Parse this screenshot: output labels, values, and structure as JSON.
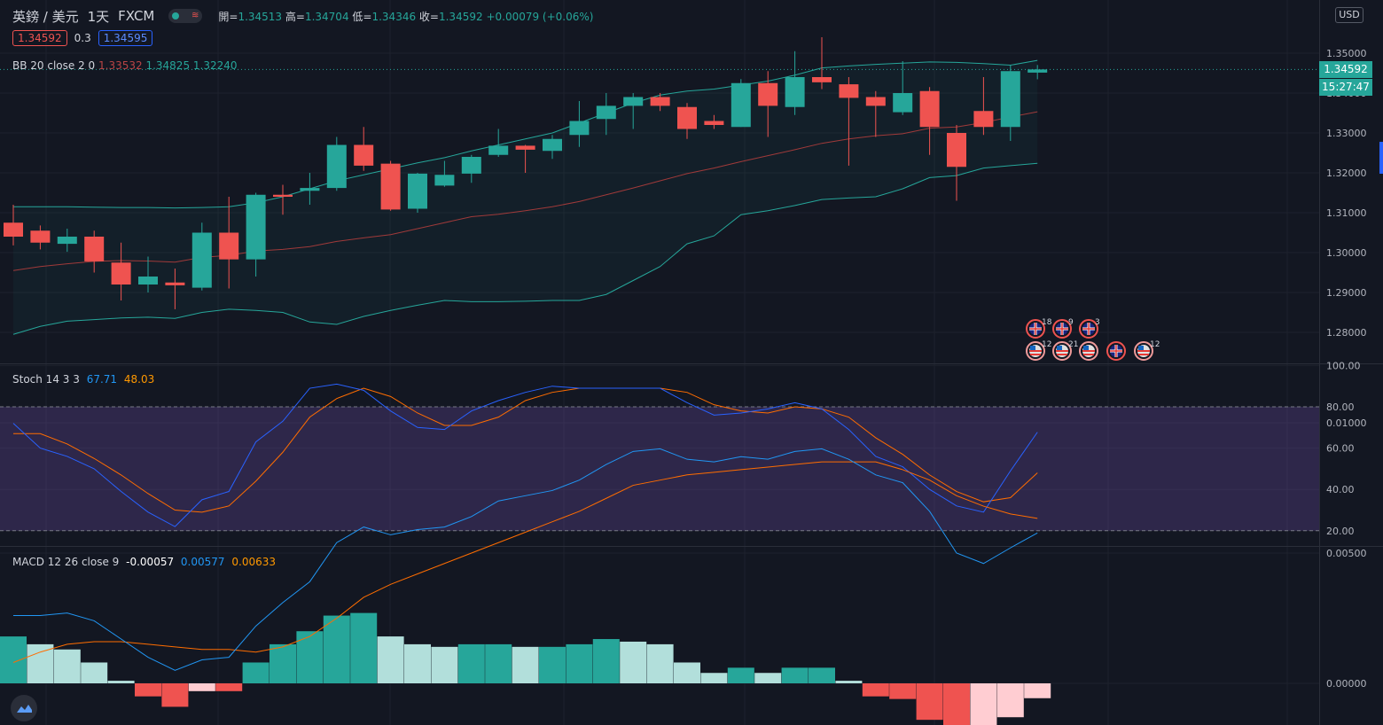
{
  "header": {
    "symbol": "英鎊 / 美元",
    "interval": "1天",
    "source": "FXCM",
    "toggle_label": "≋",
    "open_label": "開=",
    "open": "1.34513",
    "high_label": "高=",
    "high": "1.34704",
    "low_label": "低=",
    "low": "1.34346",
    "close_label": "收=",
    "close": "1.34592",
    "change": "+0.00079 (+0.06%)"
  },
  "trade": {
    "sell_price": "1.34592",
    "spread": "0.3",
    "buy_price": "1.34595"
  },
  "legends": {
    "bb": {
      "name": "BB 20 close 2 0",
      "basis": "1.33532",
      "upper": "1.34825",
      "lower": "1.32240"
    },
    "stoch": {
      "name": "Stoch 14 3 3",
      "k": "67.71",
      "d": "48.03"
    },
    "macd": {
      "name": "MACD 12 26 close 9",
      "hist": "-0.00057",
      "macd": "0.00577",
      "signal": "0.00633"
    }
  },
  "price_axis": {
    "currency": "USD",
    "last_price_label": "1.34592",
    "countdown": "15:27:47"
  },
  "colors": {
    "up": "#26a69a",
    "down": "#ef5350",
    "bb_band": "#26a69a",
    "bb_basis": "#ef5350",
    "stoch_k": "#2962ff",
    "stoch_d": "#ff6d00",
    "macd_line": "#2196f3",
    "signal_line": "#ff6d00",
    "hist_up_strong": "#26a69a",
    "hist_up_weak": "#b2dfdb",
    "hist_down_strong": "#ef5350",
    "hist_down_weak": "#ffcdd2",
    "stoch_zone": "#7e57c2"
  },
  "events": {
    "row1": [
      {
        "flag": "gb",
        "count": "18"
      },
      {
        "flag": "gb",
        "count": "9"
      },
      {
        "flag": "gb",
        "count": "3"
      }
    ],
    "row2": [
      {
        "flag": "us",
        "count": "12"
      },
      {
        "flag": "us",
        "count": "21"
      },
      {
        "flag": "us",
        "count": ""
      },
      {
        "flag": "gb",
        "count": ""
      },
      {
        "flag": "us",
        "count": "12"
      }
    ]
  },
  "chart_data": [
    {
      "type": "candlestick",
      "title": "英鎊 / 美元 1天 FXCM",
      "ylim": [
        1.275,
        1.354
      ],
      "y_ticks": [
        "1.28000",
        "1.29000",
        "1.30000",
        "1.31000",
        "1.32000",
        "1.33000",
        "1.34000",
        "1.35000"
      ],
      "candles": [
        {
          "o": 1.3075,
          "h": 1.312,
          "l": 1.3018,
          "c": 1.304
        },
        {
          "o": 1.3055,
          "h": 1.3068,
          "l": 1.3008,
          "c": 1.3025
        },
        {
          "o": 1.3022,
          "h": 1.306,
          "l": 1.3002,
          "c": 1.304
        },
        {
          "o": 1.304,
          "h": 1.3055,
          "l": 1.295,
          "c": 1.2978
        },
        {
          "o": 1.2975,
          "h": 1.3025,
          "l": 1.288,
          "c": 1.292
        },
        {
          "o": 1.292,
          "h": 1.299,
          "l": 1.29,
          "c": 1.294
        },
        {
          "o": 1.2925,
          "h": 1.296,
          "l": 1.2858,
          "c": 1.2918
        },
        {
          "o": 1.2912,
          "h": 1.3075,
          "l": 1.2905,
          "c": 1.305
        },
        {
          "o": 1.305,
          "h": 1.314,
          "l": 1.291,
          "c": 1.2983
        },
        {
          "o": 1.2983,
          "h": 1.315,
          "l": 1.294,
          "c": 1.3145
        },
        {
          "o": 1.3145,
          "h": 1.317,
          "l": 1.3095,
          "c": 1.314
        },
        {
          "o": 1.3155,
          "h": 1.32,
          "l": 1.312,
          "c": 1.3162
        },
        {
          "o": 1.3162,
          "h": 1.329,
          "l": 1.3155,
          "c": 1.327
        },
        {
          "o": 1.327,
          "h": 1.3315,
          "l": 1.3205,
          "c": 1.3218
        },
        {
          "o": 1.3223,
          "h": 1.323,
          "l": 1.3105,
          "c": 1.3108
        },
        {
          "o": 1.311,
          "h": 1.32,
          "l": 1.31,
          "c": 1.3198
        },
        {
          "o": 1.3168,
          "h": 1.323,
          "l": 1.3165,
          "c": 1.3195
        },
        {
          "o": 1.3198,
          "h": 1.3245,
          "l": 1.3175,
          "c": 1.324
        },
        {
          "o": 1.3245,
          "h": 1.331,
          "l": 1.324,
          "c": 1.3268
        },
        {
          "o": 1.3268,
          "h": 1.327,
          "l": 1.32,
          "c": 1.3258
        },
        {
          "o": 1.3255,
          "h": 1.3295,
          "l": 1.3235,
          "c": 1.3285
        },
        {
          "o": 1.3295,
          "h": 1.338,
          "l": 1.3265,
          "c": 1.333
        },
        {
          "o": 1.3335,
          "h": 1.34,
          "l": 1.3295,
          "c": 1.3368
        },
        {
          "o": 1.3368,
          "h": 1.34,
          "l": 1.331,
          "c": 1.339
        },
        {
          "o": 1.339,
          "h": 1.34,
          "l": 1.3355,
          "c": 1.3368
        },
        {
          "o": 1.3365,
          "h": 1.3375,
          "l": 1.3285,
          "c": 1.331
        },
        {
          "o": 1.333,
          "h": 1.3345,
          "l": 1.331,
          "c": 1.332
        },
        {
          "o": 1.3315,
          "h": 1.3435,
          "l": 1.3315,
          "c": 1.3425
        },
        {
          "o": 1.3425,
          "h": 1.3455,
          "l": 1.329,
          "c": 1.3368
        },
        {
          "o": 1.3365,
          "h": 1.3505,
          "l": 1.3345,
          "c": 1.344
        },
        {
          "o": 1.344,
          "h": 1.354,
          "l": 1.341,
          "c": 1.3427
        },
        {
          "o": 1.3422,
          "h": 1.344,
          "l": 1.3218,
          "c": 1.3388
        },
        {
          "o": 1.339,
          "h": 1.3405,
          "l": 1.329,
          "c": 1.3368
        },
        {
          "o": 1.3352,
          "h": 1.348,
          "l": 1.3345,
          "c": 1.34
        },
        {
          "o": 1.3405,
          "h": 1.3415,
          "l": 1.3245,
          "c": 1.3315
        },
        {
          "o": 1.33,
          "h": 1.332,
          "l": 1.313,
          "c": 1.3215
        },
        {
          "o": 1.3355,
          "h": 1.344,
          "l": 1.3295,
          "c": 1.3315
        },
        {
          "o": 1.3315,
          "h": 1.347,
          "l": 1.328,
          "c": 1.3455
        },
        {
          "o": 1.34513,
          "h": 1.34704,
          "l": 1.34346,
          "c": 1.34592
        }
      ],
      "bb_upper": [
        1.3115,
        1.3115,
        1.3115,
        1.3114,
        1.3113,
        1.3113,
        1.3112,
        1.3113,
        1.3115,
        1.3125,
        1.314,
        1.316,
        1.318,
        1.3195,
        1.321,
        1.3225,
        1.3238,
        1.3255,
        1.327,
        1.3285,
        1.33,
        1.3325,
        1.335,
        1.3375,
        1.3395,
        1.3405,
        1.341,
        1.342,
        1.343,
        1.3445,
        1.3463,
        1.3468,
        1.3472,
        1.3475,
        1.3478,
        1.3477,
        1.3474,
        1.347,
        1.3482
      ],
      "bb_basis": [
        1.2955,
        1.2965,
        1.2972,
        1.2978,
        1.298,
        1.2979,
        1.2976,
        1.2988,
        1.2993,
        1.3004,
        1.3008,
        1.3015,
        1.3028,
        1.3037,
        1.3045,
        1.306,
        1.3075,
        1.309,
        1.3096,
        1.3105,
        1.3115,
        1.3128,
        1.3145,
        1.3162,
        1.318,
        1.3198,
        1.3212,
        1.3228,
        1.3243,
        1.3258,
        1.3274,
        1.3285,
        1.3293,
        1.3298,
        1.3312,
        1.3315,
        1.3326,
        1.334,
        1.3353
      ],
      "bb_lower": [
        1.2795,
        1.2815,
        1.2828,
        1.2832,
        1.2836,
        1.2838,
        1.2835,
        1.285,
        1.2858,
        1.2855,
        1.285,
        1.2826,
        1.282,
        1.284,
        1.2855,
        1.2868,
        1.288,
        1.2877,
        1.2877,
        1.2878,
        1.288,
        1.288,
        1.2895,
        1.293,
        1.2965,
        1.3022,
        1.3042,
        1.3095,
        1.3105,
        1.3118,
        1.3133,
        1.3137,
        1.314,
        1.316,
        1.3188,
        1.3193,
        1.3212,
        1.3218,
        1.3224
      ]
    },
    {
      "type": "line",
      "title": "Stoch 14 3 3",
      "ylim": [
        10,
        100
      ],
      "y_ticks": [
        "20.00",
        "40.00",
        "60.00",
        "80.00",
        "100.00"
      ],
      "zone": [
        20,
        80
      ],
      "series": [
        {
          "name": "K",
          "values": [
            72,
            60,
            56,
            50,
            39,
            29,
            22,
            35,
            39,
            63,
            73,
            89,
            91,
            88,
            78,
            70,
            69,
            78,
            83,
            87,
            90,
            89,
            89,
            89,
            89,
            82,
            76,
            77,
            79,
            82,
            79,
            69,
            56,
            51,
            40,
            32,
            29,
            49,
            67.71
          ]
        },
        {
          "name": "D",
          "values": [
            67,
            67,
            62,
            55,
            47,
            38,
            30,
            29,
            32,
            44,
            58,
            75,
            84,
            89,
            85,
            77,
            71,
            71,
            75,
            83,
            87,
            89,
            89,
            89,
            89,
            87,
            81,
            78,
            77,
            80,
            79,
            75,
            65,
            57,
            47,
            39,
            34,
            36,
            48.03
          ]
        }
      ]
    },
    {
      "type": "line",
      "title": "MACD 12 26 close 9",
      "ylim": [
        -0.0023,
        0.0101
      ],
      "y_ticks": [
        "0.00000",
        "0.00500",
        "0.01000"
      ],
      "series": [
        {
          "name": "MACD",
          "values": [
            0.0026,
            0.0026,
            0.0027,
            0.0024,
            0.0017,
            0.001,
            0.0005,
            0.0009,
            0.001,
            0.0022,
            0.0031,
            0.0039,
            0.0054,
            0.006,
            0.0057,
            0.0059,
            0.006,
            0.0064,
            0.007,
            0.0072,
            0.0074,
            0.0078,
            0.0084,
            0.0089,
            0.009,
            0.0086,
            0.0085,
            0.0087,
            0.0086,
            0.0089,
            0.009,
            0.0086,
            0.008,
            0.0077,
            0.0066,
            0.005,
            0.0046,
            0.0052,
            0.00577
          ]
        },
        {
          "name": "Signal",
          "values": [
            0.0008,
            0.0012,
            0.0015,
            0.0016,
            0.0016,
            0.0015,
            0.0014,
            0.0013,
            0.0013,
            0.0012,
            0.0014,
            0.0018,
            0.0025,
            0.0033,
            0.0038,
            0.0042,
            0.0046,
            0.005,
            0.0054,
            0.0058,
            0.0062,
            0.0066,
            0.0071,
            0.0076,
            0.0078,
            0.008,
            0.0081,
            0.0082,
            0.0083,
            0.0084,
            0.0085,
            0.0085,
            0.0085,
            0.0082,
            0.0078,
            0.0072,
            0.0068,
            0.0065,
            0.00633
          ]
        },
        {
          "name": "Histogram",
          "values": [
            0.0018,
            0.0015,
            0.0013,
            0.0008,
            0.0001,
            -0.0005,
            -0.0009,
            -0.0003,
            -0.0003,
            0.0008,
            0.0015,
            0.002,
            0.0026,
            0.0027,
            0.0018,
            0.0015,
            0.0014,
            0.0015,
            0.0015,
            0.0014,
            0.0014,
            0.0015,
            0.0017,
            0.0016,
            0.0015,
            0.0008,
            0.0004,
            0.0006,
            0.0004,
            0.0006,
            0.0006,
            0.0001,
            -0.0005,
            -0.0006,
            -0.0014,
            -0.0023,
            -0.0022,
            -0.0013,
            -0.00057
          ]
        }
      ]
    }
  ]
}
